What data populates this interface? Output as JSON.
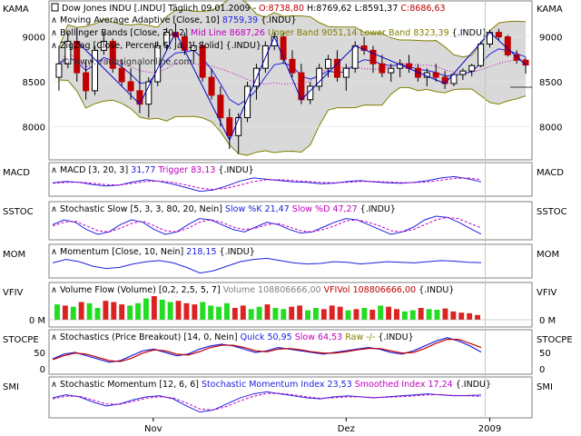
{
  "colors": {
    "up": "#00c000",
    "down": "#c00000",
    "mavg": "#2020e0",
    "band": "#808000",
    "bandfill": "#d9d9d9",
    "mid": "#c000c0",
    "zigzag": "#0000c0",
    "green_line": "#a8d8a8",
    "border": "#808080"
  },
  "x_ticks": [
    "Nov",
    "Dez",
    "2009"
  ],
  "panels": [
    {
      "key": "kama",
      "label_left": "KAMA",
      "label_right": "KAMA",
      "y_ticks": [
        "9000",
        "8500",
        "8000"
      ],
      "legend": [
        {
          "text": "Dow Jones INDU [.INDU] Täglich 09.01.2009 - ",
          "color": "#000000"
        },
        {
          "text": "O:8738,80",
          "color": "#c00000"
        },
        {
          "text": " H:8769,62 L:8591,37 ",
          "color": "#000000"
        },
        {
          "text": "C:8686,63",
          "color": "#c00000"
        }
      ],
      "legend2": [
        {
          "text": "Moving Average Adaptive [Close, 10] ",
          "color": "#000000"
        },
        {
          "text": "8759,39",
          "color": "#2020e0"
        },
        {
          "text": " {.INDU}",
          "color": "#000000"
        }
      ],
      "legend3": [
        {
          "text": "Bollinger Bands [Close, 20, 2] ",
          "color": "#000000"
        },
        {
          "text": "Mid Line 8687,26",
          "color": "#c000c0"
        },
        {
          "text": " Upper Band 9051,14 Lower Band 8323,39",
          "color": "#808000"
        },
        {
          "text": " {.INDU}",
          "color": "#000000"
        }
      ],
      "legend4": [
        {
          "text": "ZigZag [Close, Percent, 5, Ja, 1, Solid] {.INDU}",
          "color": "#000000"
        }
      ],
      "watermark": "© www.tradesignalonline.com"
    },
    {
      "key": "macd",
      "label_left": "MACD",
      "label_right": "MACD",
      "legend": [
        {
          "text": "MACD [3, 20, 3] ",
          "color": "#000000"
        },
        {
          "text": "31,77",
          "color": "#2020e0"
        },
        {
          "text": " Trigger 83,13",
          "color": "#c000c0"
        },
        {
          "text": " {.INDU}",
          "color": "#000000"
        }
      ]
    },
    {
      "key": "sstoc",
      "label_left": "SSTOC",
      "label_right": "SSTOC",
      "legend": [
        {
          "text": "Stochastic Slow [5, 3, 3, 80, 20, Nein] ",
          "color": "#000000"
        },
        {
          "text": "Slow %K 21,47",
          "color": "#2020e0"
        },
        {
          "text": " Slow %D 47,27",
          "color": "#c000c0"
        },
        {
          "text": " {.INDU}",
          "color": "#000000"
        }
      ]
    },
    {
      "key": "mom",
      "label_left": "MOM",
      "label_right": "MOM",
      "legend": [
        {
          "text": "Momentum [Close, 10, Nein] ",
          "color": "#000000"
        },
        {
          "text": "218,15",
          "color": "#2020e0"
        },
        {
          "text": " {.INDU}",
          "color": "#000000"
        }
      ]
    },
    {
      "key": "vfiv",
      "label_left": "VFIV",
      "label_right": "VFIV",
      "y_ticks": [
        "0 M"
      ],
      "legend": [
        {
          "text": "Volume Flow (Volume) [0,2, 2,5, 5, 7] ",
          "color": "#000000"
        },
        {
          "text": "Volume 108806666,00",
          "color": "#808080"
        },
        {
          "text": " VFIVol 108806666,00",
          "color": "#c00000"
        },
        {
          "text": " {.INDU}",
          "color": "#000000"
        }
      ]
    },
    {
      "key": "stocpb",
      "label_left": "STOCPE",
      "label_right": "STOCPE",
      "y_ticks": [
        "50",
        "0"
      ],
      "legend": [
        {
          "text": "Stochastics (Price Breakout) [14, 0, Nein] ",
          "color": "#000000"
        },
        {
          "text": "Quick 50,95",
          "color": "#2020e0"
        },
        {
          "text": " Slow 64,53",
          "color": "#c000c0"
        },
        {
          "text": " Raw -/-",
          "color": "#808000"
        },
        {
          "text": " {.INDU}",
          "color": "#000000"
        }
      ]
    },
    {
      "key": "smi",
      "label_left": "SMI",
      "label_right": "SMI",
      "legend": [
        {
          "text": "Stochastic Momentum [12, 6, 6] ",
          "color": "#000000"
        },
        {
          "text": "Stochastic Momentum Index 23,53",
          "color": "#2020e0"
        },
        {
          "text": " Smoothed Index 17,24",
          "color": "#c000c0"
        },
        {
          "text": " {.INDU}",
          "color": "#000000"
        }
      ]
    }
  ],
  "chart_data": [
    {
      "type": "candlestick",
      "title": "Dow Jones INDU [.INDU] Täglich 09.01.2009",
      "ylim": [
        7650,
        9350
      ],
      "categories_ticks": [
        "Nov",
        "Dez",
        "2009"
      ],
      "ohlc": [
        [
          8550,
          8900,
          8400,
          8700
        ],
        [
          8700,
          9050,
          8650,
          8950
        ],
        [
          8950,
          9100,
          8500,
          8600
        ],
        [
          8600,
          8750,
          8300,
          8400
        ],
        [
          8400,
          8900,
          8350,
          8850
        ],
        [
          8850,
          9050,
          8800,
          8950
        ],
        [
          8950,
          8980,
          8600,
          8650
        ],
        [
          8650,
          8750,
          8450,
          8500
        ],
        [
          8500,
          8650,
          8300,
          8400
        ],
        [
          8400,
          8700,
          8150,
          8250
        ],
        [
          8250,
          8550,
          8100,
          8500
        ],
        [
          8500,
          8950,
          8450,
          8900
        ],
        [
          8900,
          9100,
          8850,
          9050
        ],
        [
          9050,
          9150,
          8950,
          9000
        ],
        [
          9000,
          9050,
          8800,
          8850
        ],
        [
          8850,
          8950,
          8700,
          8900
        ],
        [
          8900,
          8950,
          8500,
          8550
        ],
        [
          8550,
          8650,
          8300,
          8350
        ],
        [
          8350,
          8450,
          8000,
          8100
        ],
        [
          8100,
          8200,
          7750,
          7900
        ],
        [
          7900,
          8150,
          7700,
          8100
        ],
        [
          8100,
          8500,
          8050,
          8450
        ],
        [
          8450,
          8700,
          8300,
          8650
        ],
        [
          8650,
          8950,
          8600,
          8900
        ],
        [
          8900,
          9050,
          8850,
          9000
        ],
        [
          9000,
          9050,
          8700,
          8750
        ],
        [
          8750,
          8850,
          8550,
          8600
        ],
        [
          8600,
          8700,
          8250,
          8300
        ],
        [
          8300,
          8500,
          8250,
          8450
        ],
        [
          8450,
          8700,
          8400,
          8650
        ],
        [
          8650,
          8800,
          8550,
          8750
        ],
        [
          8750,
          8850,
          8500,
          8550
        ],
        [
          8550,
          8700,
          8400,
          8650
        ],
        [
          8650,
          8950,
          8600,
          8900
        ],
        [
          8900,
          9000,
          8800,
          8850
        ],
        [
          8850,
          8900,
          8600,
          8700
        ],
        [
          8700,
          8800,
          8550,
          8600
        ],
        [
          8600,
          8700,
          8500,
          8650
        ],
        [
          8650,
          8750,
          8550,
          8700
        ],
        [
          8700,
          8800,
          8600,
          8650
        ],
        [
          8650,
          8700,
          8500,
          8550
        ],
        [
          8550,
          8650,
          8450,
          8600
        ],
        [
          8600,
          8700,
          8500,
          8550
        ],
        [
          8550,
          8620,
          8420,
          8480
        ],
        [
          8480,
          8600,
          8450,
          8580
        ],
        [
          8580,
          8650,
          8520,
          8620
        ],
        [
          8620,
          8700,
          8560,
          8680
        ],
        [
          8680,
          8950,
          8660,
          8920
        ],
        [
          8920,
          9080,
          8880,
          9050
        ],
        [
          9050,
          9090,
          8950,
          9000
        ],
        [
          9000,
          9020,
          8780,
          8800
        ],
        [
          8800,
          8850,
          8700,
          8740
        ],
        [
          8740,
          8770,
          8590,
          8687
        ]
      ]
    },
    {
      "type": "line",
      "title": "MACD [3, 20, 3]",
      "series": [
        {
          "name": "MACD",
          "values": [
            10,
            40,
            20,
            -30,
            -60,
            -40,
            30,
            80,
            40,
            -20,
            -100,
            -180,
            -150,
            -60,
            50,
            120,
            90,
            60,
            30,
            20,
            -10,
            0,
            40,
            60,
            30,
            10,
            0,
            20,
            60,
            120,
            150,
            100,
            32
          ]
        },
        {
          "name": "Trigger",
          "values": [
            0,
            20,
            25,
            0,
            -30,
            -40,
            0,
            40,
            50,
            20,
            -40,
            -110,
            -140,
            -110,
            -40,
            40,
            80,
            80,
            60,
            40,
            20,
            10,
            20,
            40,
            40,
            30,
            15,
            15,
            30,
            70,
            110,
            120,
            83
          ]
        }
      ]
    },
    {
      "type": "line",
      "title": "Stochastic Slow [5, 3, 3, 80, 20, Nein]",
      "series": [
        {
          "name": "Slow %K",
          "values": [
            60,
            80,
            70,
            40,
            20,
            30,
            60,
            80,
            70,
            40,
            20,
            30,
            60,
            85,
            80,
            60,
            40,
            30,
            50,
            70,
            60,
            40,
            25,
            30,
            50,
            70,
            85,
            80,
            60,
            40,
            20,
            30,
            50,
            80,
            95,
            90,
            70,
            45,
            21
          ]
        },
        {
          "name": "Slow %D",
          "values": [
            55,
            70,
            75,
            55,
            35,
            30,
            45,
            65,
            75,
            55,
            35,
            30,
            45,
            70,
            80,
            70,
            50,
            40,
            45,
            60,
            65,
            50,
            35,
            30,
            40,
            55,
            75,
            80,
            70,
            55,
            35,
            30,
            40,
            60,
            80,
            90,
            85,
            65,
            47
          ]
        }
      ]
    },
    {
      "type": "line",
      "title": "Momentum [Close, 10, Nein]",
      "series": [
        {
          "name": "Momentum",
          "values": [
            200,
            500,
            300,
            -100,
            -300,
            -200,
            100,
            300,
            400,
            200,
            -200,
            -700,
            -500,
            -100,
            300,
            500,
            600,
            400,
            200,
            100,
            150,
            300,
            250,
            100,
            200,
            300,
            250,
            200,
            300,
            400,
            350,
            250,
            218
          ]
        }
      ]
    },
    {
      "type": "bar",
      "title": "Volume Flow (Volume) [0,2, 2,5, 5, 7]",
      "values": [
        130,
        120,
        110,
        150,
        140,
        100,
        160,
        150,
        130,
        120,
        140,
        180,
        200,
        170,
        150,
        160,
        140,
        130,
        150,
        120,
        110,
        140,
        100,
        120,
        90,
        110,
        130,
        100,
        90,
        110,
        120,
        80,
        100,
        90,
        120,
        110,
        80,
        90,
        100,
        85,
        120,
        110,
        90,
        70,
        80,
        100,
        90,
        85,
        95,
        70,
        60,
        55,
        40
      ],
      "colors_up": [
        1,
        0,
        1,
        0,
        1,
        1,
        0,
        0,
        0,
        1,
        1,
        1,
        0,
        1,
        1,
        0,
        0,
        0,
        1,
        1,
        1,
        1,
        0,
        0,
        1,
        1,
        0,
        1,
        1,
        0,
        0,
        1,
        1,
        0,
        0,
        0,
        1,
        0,
        1,
        0,
        1,
        0,
        0,
        1,
        1,
        0,
        1,
        1,
        0,
        0,
        0,
        0,
        0
      ]
    },
    {
      "type": "line",
      "title": "Stochastics (Price Breakout) [14, 0, Nein]",
      "series": [
        {
          "name": "Quick",
          "values": [
            30,
            45,
            50,
            40,
            30,
            20,
            25,
            40,
            55,
            60,
            50,
            40,
            45,
            60,
            70,
            75,
            70,
            60,
            50,
            55,
            65,
            60,
            55,
            50,
            45,
            50,
            55,
            60,
            65,
            60,
            50,
            45,
            55,
            70,
            85,
            95,
            85,
            70,
            51
          ]
        },
        {
          "name": "Slow",
          "values": [
            28,
            40,
            48,
            45,
            35,
            25,
            22,
            32,
            48,
            58,
            55,
            45,
            42,
            52,
            65,
            72,
            72,
            65,
            55,
            52,
            60,
            62,
            58,
            52,
            48,
            48,
            52,
            58,
            62,
            62,
            55,
            48,
            50,
            62,
            78,
            90,
            90,
            78,
            65
          ]
        }
      ]
    },
    {
      "type": "line",
      "title": "Stochastic Momentum [12, 6, 6]",
      "series": [
        {
          "name": "Stochastic Momentum Index",
          "values": [
            10,
            25,
            15,
            -10,
            -30,
            -20,
            0,
            15,
            20,
            5,
            -30,
            -60,
            -50,
            -20,
            10,
            30,
            40,
            30,
            20,
            10,
            5,
            15,
            20,
            15,
            10,
            15,
            20,
            25,
            30,
            25,
            20,
            22,
            24
          ]
        },
        {
          "name": "Smoothed Index",
          "values": [
            5,
            18,
            18,
            0,
            -20,
            -22,
            -8,
            8,
            16,
            10,
            -15,
            -45,
            -50,
            -32,
            -5,
            18,
            32,
            32,
            25,
            15,
            8,
            10,
            15,
            15,
            12,
            13,
            16,
            20,
            25,
            26,
            22,
            20,
            17
          ]
        }
      ]
    }
  ]
}
